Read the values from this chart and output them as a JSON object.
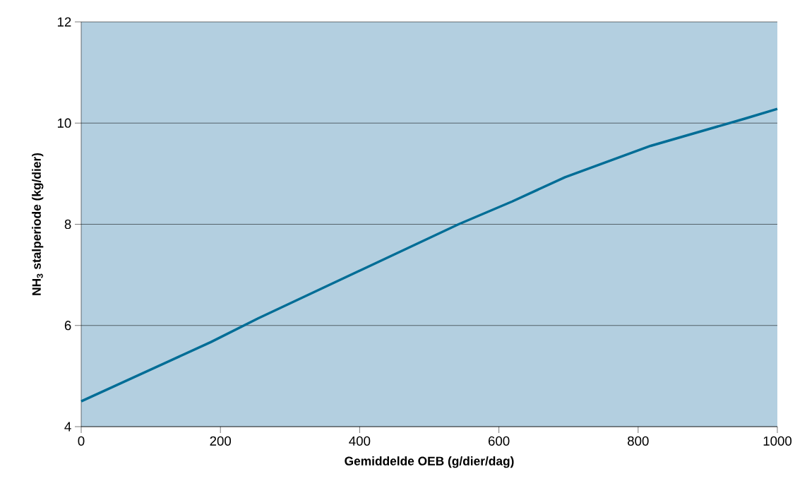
{
  "chart_data": {
    "type": "line",
    "xlabel": "Gemiddelde OEB (g/dier/dag)",
    "ylabel": "NH$_{3}$ stalperiode (kg/dier)",
    "x": [
      0,
      186,
      254,
      542,
      619,
      695,
      818,
      954,
      1000
    ],
    "series": [
      {
        "color": "#006d96",
        "values": [
          4.5,
          5.67,
          6.14,
          8.0,
          8.45,
          8.93,
          9.55,
          10.09,
          10.28
        ]
      }
    ],
    "xlim": [
      0,
      1000
    ],
    "ylim": [
      4,
      12
    ],
    "xticks": [
      0,
      200,
      400,
      600,
      800,
      1000
    ],
    "yticks": [
      4,
      6,
      8,
      10,
      12
    ],
    "grid": "y"
  }
}
